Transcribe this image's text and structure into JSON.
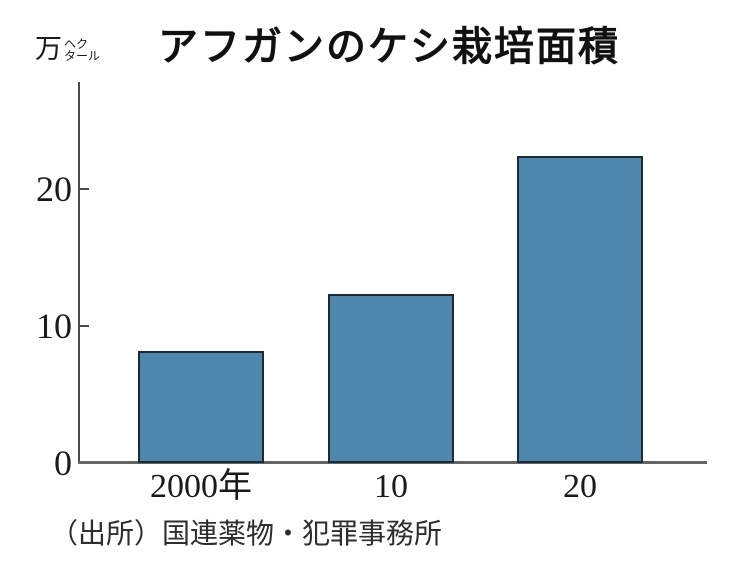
{
  "chart": {
    "title": "アフガンのケシ栽培面積",
    "unit": {
      "main": "万",
      "small": [
        "ヘク",
        "タール"
      ]
    },
    "source": "（出所）国連薬物・犯罪事務所",
    "colors": {
      "bar_fill": "#4f88ac",
      "bar_border": "#1e2b37",
      "axis": "#4a4a4a",
      "text": "#1a1a1a"
    }
  },
  "chart_data": {
    "type": "bar",
    "title": "アフガンのケシ栽培面積",
    "categories": [
      "2000年",
      "10",
      "20"
    ],
    "values": [
      8.2,
      12.3,
      22.4
    ],
    "xlabel": "",
    "ylabel": "万ヘクタール",
    "ylim": [
      0,
      27.5
    ],
    "yticks": [
      0,
      10,
      20
    ],
    "grid": false,
    "legend": "none",
    "source": "（出所）国連薬物・犯罪事務所"
  }
}
